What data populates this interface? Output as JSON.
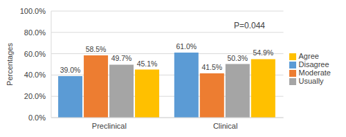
{
  "chart_data": {
    "type": "bar",
    "categories": [
      "Preclinical",
      "Clinical"
    ],
    "y_label": "Percentages",
    "annotation": "P=0.044",
    "series": [
      {
        "name": "Disagree",
        "color": "#5b9bd5",
        "values": [
          39.0,
          61.0
        ],
        "value_labels": [
          "39.0%",
          "61.0%"
        ]
      },
      {
        "name": "Moderate",
        "color": "#ed7d31",
        "values": [
          58.5,
          41.5
        ],
        "value_labels": [
          "58.5%",
          "41.5%"
        ]
      },
      {
        "name": "Usually",
        "color": "#a5a5a5",
        "values": [
          49.7,
          50.3
        ],
        "value_labels": [
          "49.7%",
          "50.3%"
        ]
      },
      {
        "name": "Agree",
        "color": "#ffc000",
        "values": [
          45.1,
          54.9
        ],
        "value_labels": [
          "45.1%",
          "54.9%"
        ]
      }
    ],
    "ylim": [
      0,
      100
    ],
    "yticks": [
      {
        "value": 0,
        "label": "0.0%"
      },
      {
        "value": 20,
        "label": "20.0%"
      },
      {
        "value": 40,
        "label": "40.0%"
      },
      {
        "value": 60,
        "label": "60.0%"
      },
      {
        "value": 80,
        "label": "80.0%"
      },
      {
        "value": 100,
        "label": "100.0%"
      }
    ],
    "grid": true,
    "legend": "right",
    "data_labels": true
  }
}
